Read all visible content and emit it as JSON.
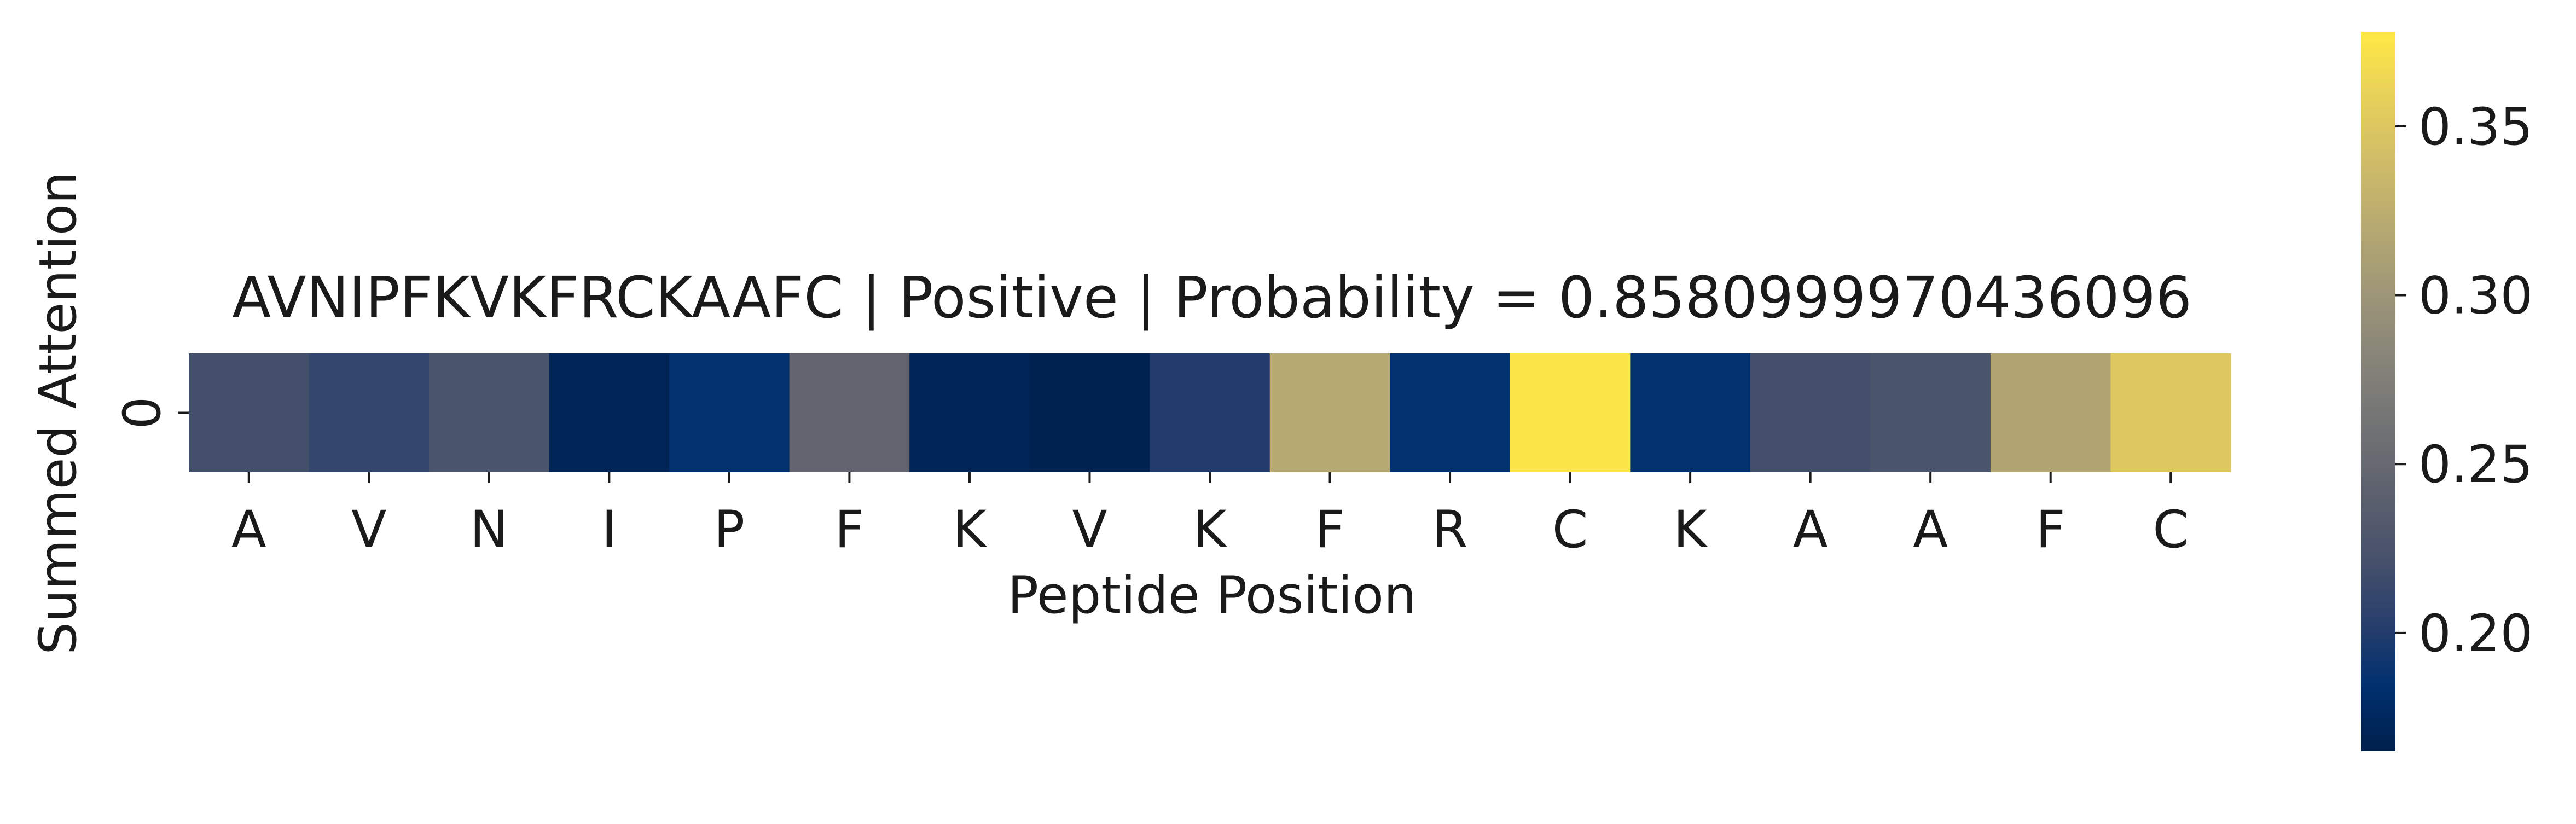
{
  "chart_data": {
    "type": "heatmap",
    "title": "AVNIPFKVKFRCKAAFC | Positive | Probability = 0.8580999970436096",
    "xlabel": "Peptide Position",
    "ylabel": "Summed Attention",
    "x_tick_labels": [
      "A",
      "V",
      "N",
      "I",
      "P",
      "F",
      "K",
      "V",
      "K",
      "F",
      "R",
      "C",
      "K",
      "A",
      "A",
      "F",
      "C"
    ],
    "y_tick_labels": [
      "0"
    ],
    "values": [
      [
        0.22,
        0.21,
        0.225,
        0.17,
        0.185,
        0.245,
        0.17,
        0.168,
        0.2,
        0.32,
        0.185,
        0.375,
        0.185,
        0.22,
        0.225,
        0.315,
        0.35
      ]
    ],
    "colormap": "cividis",
    "colormap_stops": [
      "#00204c",
      "#00306f",
      "#2a406c",
      "#48526b",
      "#5e626e",
      "#727374",
      "#878479",
      "#9e9677",
      "#b6a971",
      "#cfbc68",
      "#e7d05a",
      "#ffe945"
    ],
    "colorbar": {
      "range": [
        0.165,
        0.378
      ],
      "ticks": [
        0.2,
        0.25,
        0.3,
        0.35
      ],
      "tick_labels": [
        "0.20",
        "0.25",
        "0.30",
        "0.35"
      ]
    }
  }
}
